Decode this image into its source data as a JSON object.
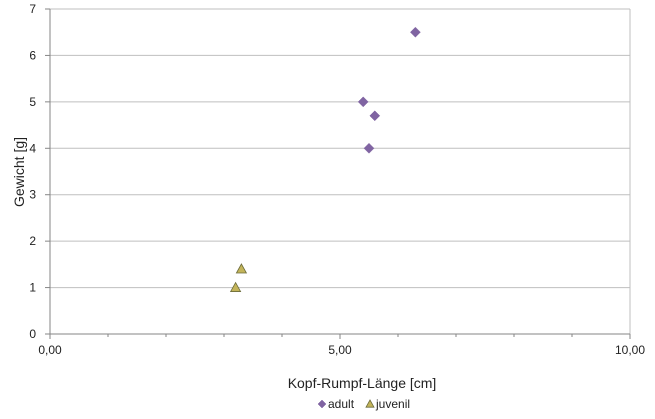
{
  "chart_data": {
    "type": "scatter",
    "xlabel": "Kopf-Rumpf-Länge [cm]",
    "ylabel": "Gewicht  [g]",
    "xlim": [
      0,
      10
    ],
    "ylim": [
      0,
      7
    ],
    "x_ticks": [
      "0,00",
      "5,00",
      "10,00"
    ],
    "x_tick_values": [
      0,
      5,
      10
    ],
    "y_ticks": [
      "0",
      "1",
      "2",
      "3",
      "4",
      "5",
      "6",
      "7"
    ],
    "y_tick_values": [
      0,
      1,
      2,
      3,
      4,
      5,
      6,
      7
    ],
    "grid": "horizontal",
    "legend_position": "bottom",
    "series": [
      {
        "name": "adult",
        "marker": "diamond",
        "color": "#8064A2",
        "points": [
          {
            "x": 5.4,
            "y": 5.0
          },
          {
            "x": 5.6,
            "y": 4.7
          },
          {
            "x": 5.5,
            "y": 4.0
          },
          {
            "x": 6.3,
            "y": 6.5
          }
        ]
      },
      {
        "name": "juvenil",
        "marker": "triangle",
        "color": "#C3B45A",
        "stroke": "#6B6B3A",
        "points": [
          {
            "x": 3.2,
            "y": 1.0
          },
          {
            "x": 3.3,
            "y": 1.4
          }
        ]
      }
    ]
  }
}
